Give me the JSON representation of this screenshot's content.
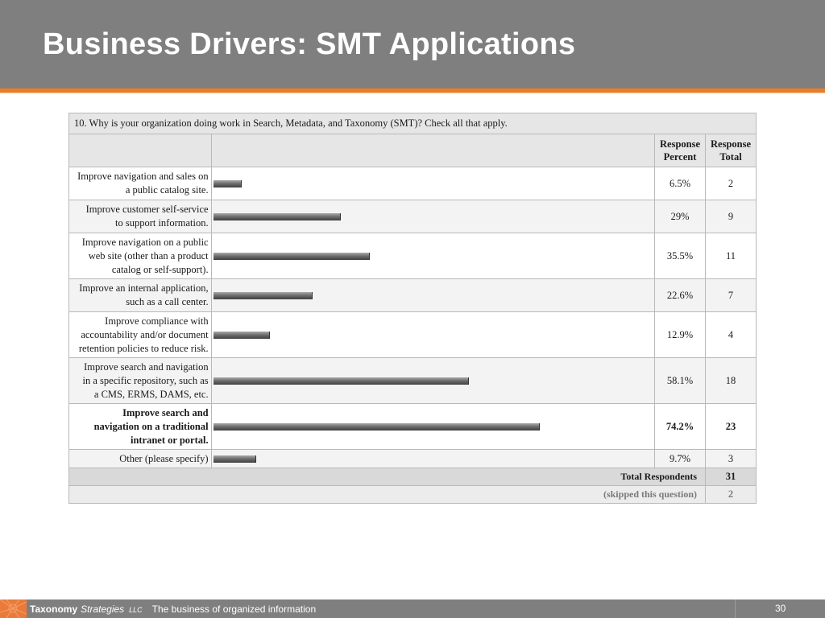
{
  "slide": {
    "title": "Business Drivers: SMT Applications",
    "page_number": "30"
  },
  "footer": {
    "brand_bold": "Taxonomy",
    "brand_italic": "Strategies",
    "brand_llc": "LLC",
    "tagline": "The business of organized information"
  },
  "colors": {
    "header_bg": "#7f7f7f",
    "accent_orange": "#f07c22",
    "bar": "#6f6f6f"
  },
  "chart_data": {
    "type": "bar",
    "title": "10. Why is your organization doing work in Search, Metadata, and Taxonomy (SMT)? Check all that apply.",
    "column_headers": {
      "percent": [
        "Response",
        "Percent"
      ],
      "total": [
        "Response",
        "Total"
      ]
    },
    "categories": [
      [
        "Improve navigation and sales on",
        "a public catalog site."
      ],
      [
        "Improve customer self-service",
        "to support information."
      ],
      [
        "Improve navigation on a public",
        "web site (other than a product",
        "catalog or self-support)."
      ],
      [
        "Improve an internal application,",
        "such as a call center."
      ],
      [
        "Improve compliance with",
        "accountability and/or document",
        "retention policies to reduce risk."
      ],
      [
        "Improve search and navigation",
        "in a specific repository, such as",
        "a CMS, ERMS, DAMS, etc."
      ],
      [
        "Improve search and",
        "navigation on a traditional",
        "intranet or portal."
      ],
      [
        "Other (please specify)"
      ]
    ],
    "percent_labels": [
      "6.5%",
      "29%",
      "35.5%",
      "22.6%",
      "12.9%",
      "58.1%",
      "74.2%",
      "9.7%"
    ],
    "values": [
      6.5,
      29,
      35.5,
      22.6,
      12.9,
      58.1,
      74.2,
      9.7
    ],
    "totals": [
      "2",
      "9",
      "11",
      "7",
      "4",
      "18",
      "23",
      "3"
    ],
    "highlighted_row": 6,
    "xlim": [
      0,
      100
    ],
    "total_respondents_label": "Total Respondents",
    "total_respondents": "31",
    "skipped_label": "(skipped this question)",
    "skipped": "2"
  }
}
